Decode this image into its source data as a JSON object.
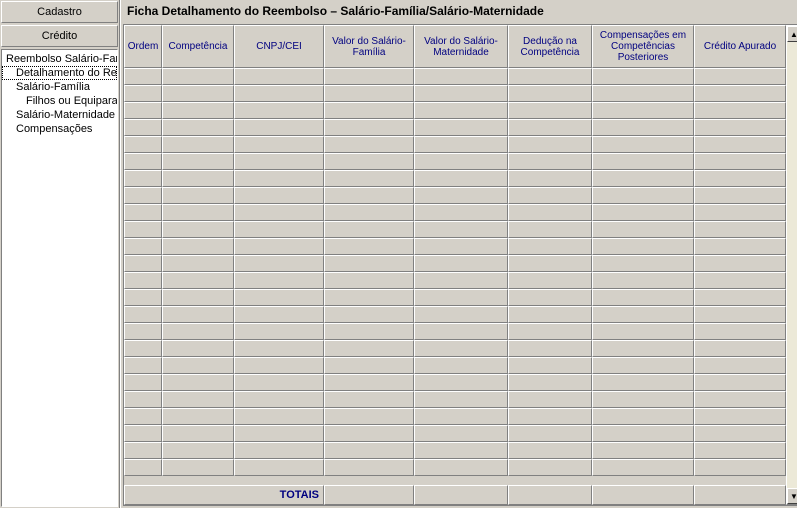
{
  "sidebar": {
    "header1": "Cadastro",
    "header2": "Crédito",
    "items": [
      {
        "label": "Reembolso Salário-Família",
        "indent": 0,
        "selected": false
      },
      {
        "label": "Detalhamento do Reembolso",
        "indent": 1,
        "selected": true
      },
      {
        "label": "Salário-Família",
        "indent": 1,
        "selected": false
      },
      {
        "label": "Filhos ou Equiparados",
        "indent": 2,
        "selected": false
      },
      {
        "label": "Salário-Maternidade",
        "indent": 1,
        "selected": false
      },
      {
        "label": "Compensações",
        "indent": 1,
        "selected": false
      }
    ]
  },
  "main": {
    "title": "Ficha Detalhamento do Reembolso – Salário-Família/Salário-Maternidade",
    "columns": [
      "Ordem",
      "Competência",
      "CNPJ/CEI",
      "Valor do Salário-Família",
      "Valor do Salário-Maternidade",
      "Dedução na Competência",
      "Compensações em Competências Posteriores",
      "Crédito Apurado"
    ],
    "rowCount": 24,
    "footer": {
      "label": "TOTAIS"
    }
  },
  "colors": {
    "panel_bg": "#d4d0c8",
    "header_text": "#000080",
    "border_light": "#ffffff",
    "border_dark": "#808080"
  }
}
